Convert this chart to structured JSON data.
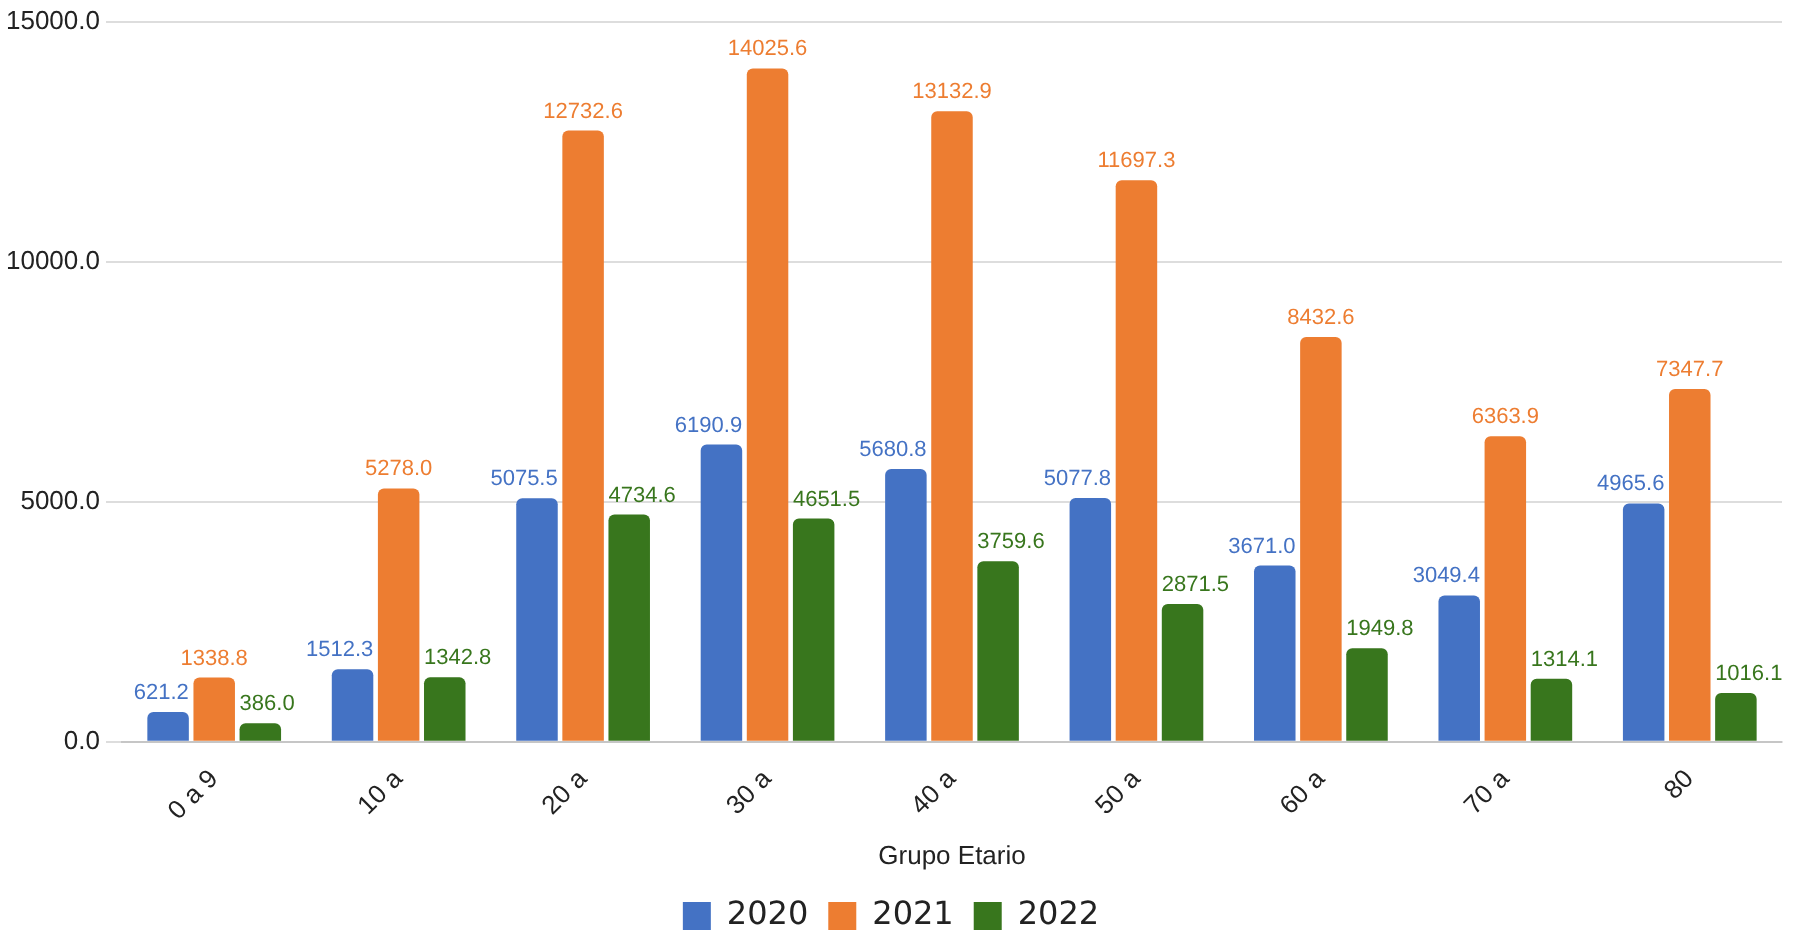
{
  "chart_data": {
    "type": "bar",
    "xlabel": "Grupo Etario",
    "categories": [
      "0 a 9",
      "10 a",
      "20 a",
      "30 a",
      "40 a",
      "50 a",
      "60 a",
      "70 a",
      "80"
    ],
    "series": [
      {
        "name": "2020",
        "color": "#4472c4",
        "values": [
          621.2,
          1512.3,
          5075.5,
          6190.9,
          5680.8,
          5077.8,
          3671.0,
          3049.4,
          4965.6
        ],
        "value_labels": [
          "621.2",
          "1512.3",
          "5075.5",
          "6190.9",
          "5680.8",
          "5077.8",
          "3671.0",
          "3049.4",
          "4965.6"
        ]
      },
      {
        "name": "2021",
        "color": "#ed7d31",
        "values": [
          1338.8,
          5278.0,
          12732.6,
          14025.6,
          13132.9,
          11697.3,
          8432.6,
          6363.9,
          7347.7
        ],
        "value_labels": [
          "1338.8",
          "5278.0",
          "12732.6",
          "14025.6",
          "13132.9",
          "11697.3",
          "8432.6",
          "6363.9",
          "7347.7"
        ]
      },
      {
        "name": "2022",
        "color": "#38761d",
        "values": [
          386.0,
          1342.8,
          4734.6,
          4651.5,
          3759.6,
          2871.5,
          1949.8,
          1314.1,
          1016.1
        ],
        "value_labels": [
          "386.0",
          "1342.8",
          "4734.6",
          "4651.5",
          "3759.6",
          "2871.5",
          "1949.8",
          "1314.1",
          "1016.1"
        ]
      }
    ],
    "ylim": [
      0,
      15000
    ],
    "yticks": [
      {
        "value": 0,
        "label": "0.0"
      },
      {
        "value": 5000,
        "label": "5000.0"
      },
      {
        "value": 10000,
        "label": "10000.0"
      },
      {
        "value": 15000,
        "label": "15000.0"
      }
    ],
    "grid": "y",
    "legend": "bottom"
  }
}
